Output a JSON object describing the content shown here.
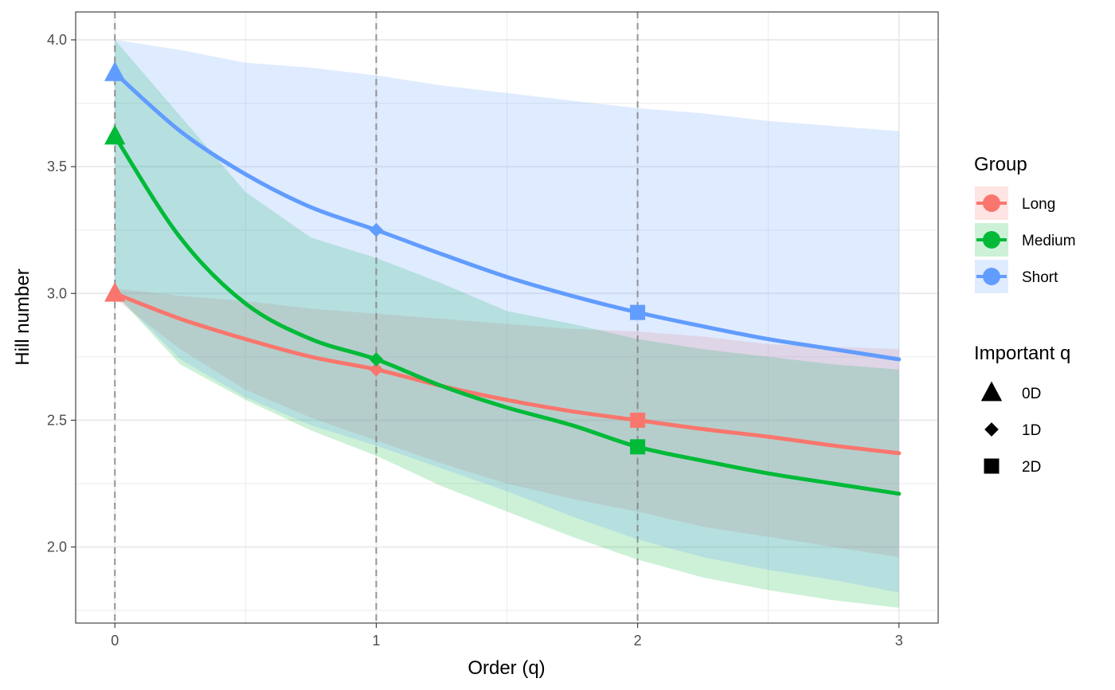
{
  "chart_data": {
    "type": "line",
    "xlabel": "Order (q)",
    "ylabel": "Hill number",
    "xlim": [
      -0.15,
      3.15
    ],
    "ylim": [
      1.7,
      4.11
    ],
    "x_ticks": [
      0,
      1,
      2,
      3
    ],
    "x_tick_labels": [
      "0",
      "1",
      "2",
      "3"
    ],
    "y_ticks": [
      2.0,
      2.5,
      3.0,
      3.5,
      4.0
    ],
    "y_tick_labels": [
      "2.0",
      "2.5",
      "3.0",
      "3.5",
      "4.0"
    ],
    "x_minor_ticks": [
      0.5,
      1.5,
      2.5
    ],
    "y_minor_ticks": [
      1.75,
      2.25,
      2.75,
      3.25,
      3.75
    ],
    "vlines": [
      0,
      1,
      2
    ],
    "grid": true,
    "legend_position": "right",
    "x": [
      0,
      0.25,
      0.5,
      0.75,
      1,
      1.25,
      1.5,
      1.75,
      2,
      2.25,
      2.5,
      2.75,
      3
    ],
    "series": [
      {
        "name": "Long",
        "color": "#F8766D",
        "y": [
          3.0,
          2.9,
          2.82,
          2.75,
          2.7,
          2.635,
          2.58,
          2.535,
          2.5,
          2.465,
          2.435,
          2.4,
          2.37
        ],
        "lower": [
          2.98,
          2.78,
          2.62,
          2.51,
          2.42,
          2.33,
          2.25,
          2.19,
          2.14,
          2.08,
          2.04,
          2.0,
          1.96
        ],
        "upper": [
          3.02,
          2.99,
          2.97,
          2.94,
          2.92,
          2.9,
          2.88,
          2.86,
          2.85,
          2.83,
          2.8,
          2.79,
          2.78
        ],
        "points": [
          {
            "q": 0,
            "value": 3.0,
            "marker": "0D"
          },
          {
            "q": 1,
            "value": 2.7,
            "marker": "1D"
          },
          {
            "q": 2,
            "value": 2.5,
            "marker": "2D"
          }
        ]
      },
      {
        "name": "Medium",
        "color": "#00BA38",
        "y": [
          3.62,
          3.22,
          2.96,
          2.82,
          2.74,
          2.635,
          2.55,
          2.48,
          2.395,
          2.34,
          2.29,
          2.25,
          2.21
        ],
        "lower": [
          3.0,
          2.72,
          2.58,
          2.46,
          2.36,
          2.24,
          2.14,
          2.04,
          1.95,
          1.88,
          1.83,
          1.79,
          1.76
        ],
        "upper": [
          4.0,
          3.7,
          3.4,
          3.22,
          3.14,
          3.04,
          2.93,
          2.88,
          2.82,
          2.78,
          2.75,
          2.72,
          2.7
        ],
        "points": [
          {
            "q": 0,
            "value": 3.62,
            "marker": "0D"
          },
          {
            "q": 1,
            "value": 2.74,
            "marker": "1D"
          },
          {
            "q": 2,
            "value": 2.395,
            "marker": "2D"
          }
        ]
      },
      {
        "name": "Short",
        "color": "#619CFF",
        "y": [
          3.87,
          3.64,
          3.47,
          3.34,
          3.25,
          3.155,
          3.065,
          2.99,
          2.925,
          2.87,
          2.82,
          2.78,
          2.74
        ],
        "lower": [
          3.0,
          2.74,
          2.59,
          2.48,
          2.4,
          2.31,
          2.22,
          2.12,
          2.03,
          1.96,
          1.91,
          1.87,
          1.82
        ],
        "upper": [
          4.0,
          3.96,
          3.91,
          3.89,
          3.86,
          3.82,
          3.79,
          3.76,
          3.73,
          3.71,
          3.68,
          3.66,
          3.64
        ],
        "points": [
          {
            "q": 0,
            "value": 3.87,
            "marker": "0D"
          },
          {
            "q": 1,
            "value": 3.25,
            "marker": "1D"
          },
          {
            "q": 2,
            "value": 2.925,
            "marker": "2D"
          }
        ]
      }
    ],
    "legend": {
      "group_title": "Group",
      "group_items": [
        {
          "label": "Long",
          "color": "#F8766D"
        },
        {
          "label": "Medium",
          "color": "#00BA38"
        },
        {
          "label": "Short",
          "color": "#619CFF"
        }
      ],
      "shape_title": "Important q",
      "shape_items": [
        {
          "label": "0D",
          "shape": "triangle"
        },
        {
          "label": "1D",
          "shape": "diamond"
        },
        {
          "label": "2D",
          "shape": "square"
        }
      ]
    }
  }
}
